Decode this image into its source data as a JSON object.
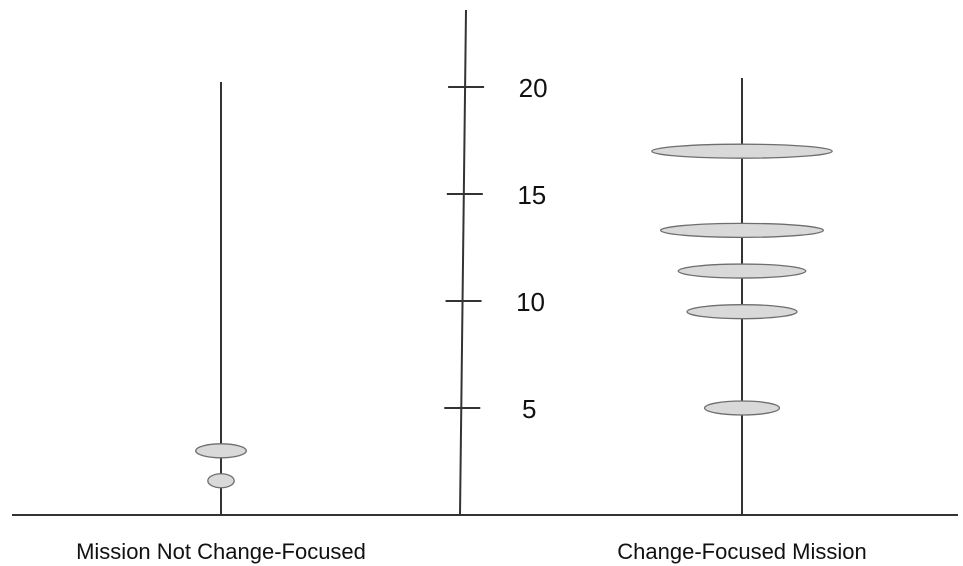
{
  "chart_data": {
    "type": "scatter",
    "title": "",
    "xlabel": "",
    "ylabel": "",
    "ylim": [
      0,
      22
    ],
    "grid": false,
    "legend": "none",
    "yticks": [
      {
        "value": 5,
        "label": "5"
      },
      {
        "value": 10,
        "label": "10"
      },
      {
        "value": 15,
        "label": "15"
      },
      {
        "value": 20,
        "label": "20"
      }
    ],
    "categories": [
      "Mission Not Change-Focused",
      "Change-Focused Mission"
    ],
    "series": [
      {
        "category": "Mission Not Change-Focused",
        "points": [
          {
            "y": 3.0,
            "spread": 2.3
          },
          {
            "y": 1.6,
            "spread": 1.2
          }
        ]
      },
      {
        "category": "Change-Focused Mission",
        "points": [
          {
            "y": 17.0,
            "spread": 8.2
          },
          {
            "y": 13.3,
            "spread": 7.4
          },
          {
            "y": 11.4,
            "spread": 5.8
          },
          {
            "y": 9.5,
            "spread": 5.0
          },
          {
            "y": 5.0,
            "spread": 3.4
          }
        ]
      }
    ],
    "colors": {
      "marker_fill": "#d9d9d9",
      "marker_stroke": "#6e6e6e",
      "axis": "#333333"
    }
  }
}
